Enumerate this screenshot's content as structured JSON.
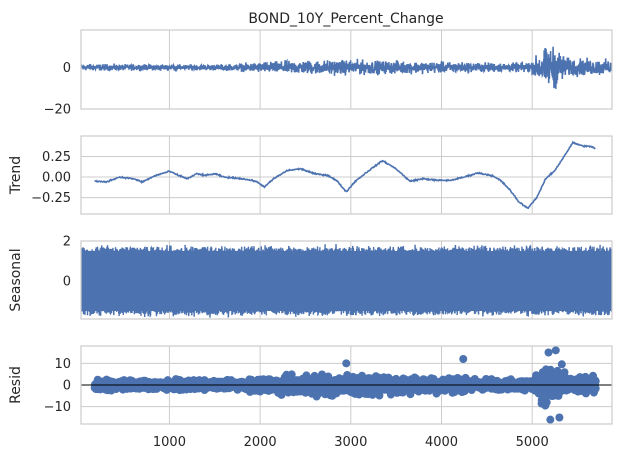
{
  "chart_data": {
    "type": "line",
    "title": "BOND_10Y_Percent_Change",
    "xlim": [
      25,
      5880
    ],
    "x_ticks": [
      "1000",
      "2000",
      "3000",
      "4000",
      "5000"
    ],
    "x_tick_values": [
      1000,
      2000,
      3000,
      4000,
      5000
    ],
    "grid": true,
    "series_color": "#4c72b0",
    "panels": [
      {
        "name": "observed",
        "ylabel": "",
        "ylim": [
          -20,
          18
        ],
        "y_ticks": [
          "0",
          "−20"
        ],
        "y_tick_values": [
          0,
          -20
        ],
        "kind": "line",
        "amplitude_profile": [
          {
            "x": 100,
            "amp": 2.2
          },
          {
            "x": 1200,
            "amp": 1.8
          },
          {
            "x": 1700,
            "amp": 2.2
          },
          {
            "x": 2000,
            "amp": 3.5
          },
          {
            "x": 2400,
            "amp": 4.5
          },
          {
            "x": 3000,
            "amp": 5.0
          },
          {
            "x": 3600,
            "amp": 4.0
          },
          {
            "x": 4200,
            "amp": 3.5
          },
          {
            "x": 4800,
            "amp": 3.0
          },
          {
            "x": 5000,
            "amp": 4.0
          },
          {
            "x": 5100,
            "amp": 12.0
          },
          {
            "x": 5250,
            "amp": 14.0
          },
          {
            "x": 5400,
            "amp": 6.0
          },
          {
            "x": 5880,
            "amp": 5.0
          }
        ]
      },
      {
        "name": "trend",
        "ylabel": "Trend",
        "ylim": [
          -0.45,
          0.5
        ],
        "y_ticks": [
          "0.25",
          "0.00",
          "−0.25"
        ],
        "y_tick_values": [
          0.25,
          0.0,
          -0.25
        ],
        "kind": "line",
        "points": [
          {
            "x": 175,
            "y": -0.05
          },
          {
            "x": 300,
            "y": -0.06
          },
          {
            "x": 450,
            "y": 0.0
          },
          {
            "x": 600,
            "y": -0.02
          },
          {
            "x": 700,
            "y": -0.06
          },
          {
            "x": 850,
            "y": 0.02
          },
          {
            "x": 1000,
            "y": 0.07
          },
          {
            "x": 1100,
            "y": 0.02
          },
          {
            "x": 1200,
            "y": -0.02
          },
          {
            "x": 1300,
            "y": 0.04
          },
          {
            "x": 1400,
            "y": 0.02
          },
          {
            "x": 1500,
            "y": 0.04
          },
          {
            "x": 1600,
            "y": 0.0
          },
          {
            "x": 1800,
            "y": -0.02
          },
          {
            "x": 1950,
            "y": -0.05
          },
          {
            "x": 2050,
            "y": -0.12
          },
          {
            "x": 2150,
            "y": -0.02
          },
          {
            "x": 2300,
            "y": 0.08
          },
          {
            "x": 2450,
            "y": 0.1
          },
          {
            "x": 2600,
            "y": 0.04
          },
          {
            "x": 2750,
            "y": 0.02
          },
          {
            "x": 2850,
            "y": -0.05
          },
          {
            "x": 2950,
            "y": -0.18
          },
          {
            "x": 3050,
            "y": -0.05
          },
          {
            "x": 3200,
            "y": 0.08
          },
          {
            "x": 3350,
            "y": 0.2
          },
          {
            "x": 3500,
            "y": 0.1
          },
          {
            "x": 3650,
            "y": -0.05
          },
          {
            "x": 3800,
            "y": -0.02
          },
          {
            "x": 3950,
            "y": -0.04
          },
          {
            "x": 4100,
            "y": -0.04
          },
          {
            "x": 4250,
            "y": 0.0
          },
          {
            "x": 4400,
            "y": 0.05
          },
          {
            "x": 4550,
            "y": 0.02
          },
          {
            "x": 4650,
            "y": -0.04
          },
          {
            "x": 4750,
            "y": -0.15
          },
          {
            "x": 4850,
            "y": -0.3
          },
          {
            "x": 4950,
            "y": -0.38
          },
          {
            "x": 5050,
            "y": -0.25
          },
          {
            "x": 5150,
            "y": -0.02
          },
          {
            "x": 5250,
            "y": 0.08
          },
          {
            "x": 5350,
            "y": 0.25
          },
          {
            "x": 5450,
            "y": 0.42
          },
          {
            "x": 5550,
            "y": 0.38
          },
          {
            "x": 5650,
            "y": 0.37
          },
          {
            "x": 5700,
            "y": 0.35
          }
        ]
      },
      {
        "name": "seasonal",
        "ylabel": "Seasonal",
        "ylim": [
          -1.9,
          2.0
        ],
        "y_ticks": [
          "2",
          "0"
        ],
        "y_tick_values": [
          2,
          0
        ],
        "kind": "line",
        "band": [
          -1.5,
          1.5
        ]
      },
      {
        "name": "resid",
        "ylabel": "Resid",
        "ylim": [
          -18,
          18
        ],
        "y_ticks": [
          "10",
          "0",
          "−10"
        ],
        "y_tick_values": [
          10,
          0,
          -10
        ],
        "kind": "scatter",
        "amplitude_profile": [
          {
            "x": 175,
            "amp": 3.5
          },
          {
            "x": 1200,
            "amp": 3.0
          },
          {
            "x": 1800,
            "amp": 3.0
          },
          {
            "x": 2100,
            "amp": 5.0
          },
          {
            "x": 2500,
            "amp": 6.0
          },
          {
            "x": 3000,
            "amp": 7.0
          },
          {
            "x": 3600,
            "amp": 5.0
          },
          {
            "x": 4200,
            "amp": 4.5
          },
          {
            "x": 4800,
            "amp": 3.0
          },
          {
            "x": 5000,
            "amp": 4.0
          },
          {
            "x": 5150,
            "amp": 12.0
          },
          {
            "x": 5250,
            "amp": 14.0
          },
          {
            "x": 5400,
            "amp": 6.0
          },
          {
            "x": 5700,
            "amp": 5.0
          }
        ],
        "outliers": [
          {
            "x": 2950,
            "y": 10
          },
          {
            "x": 4240,
            "y": 12
          },
          {
            "x": 5180,
            "y": 15
          },
          {
            "x": 5260,
            "y": 16
          },
          {
            "x": 5200,
            "y": -16
          },
          {
            "x": 5300,
            "y": -15
          }
        ]
      }
    ]
  }
}
